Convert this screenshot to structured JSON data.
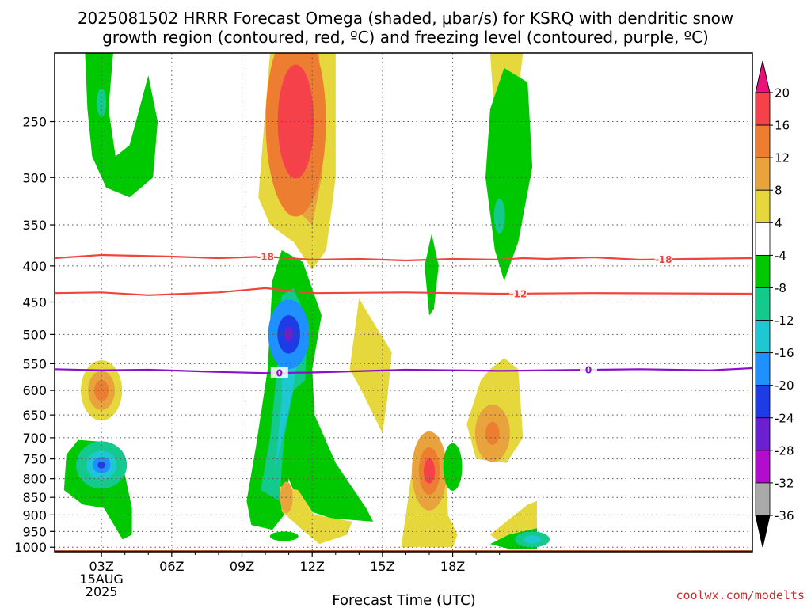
{
  "header": {
    "title_line1": "2025081502 HRRR Forecast Omega (shaded, μbar/s) for KSRQ with dendritic snow",
    "title_line2": "growth region (contoured, red, ºC) and freezing level (contoured, purple, ºC)"
  },
  "footer": {
    "credit": "coolwx.com/modelts"
  },
  "chart_data": {
    "type": "contour-time-height",
    "title": "2025081502 HRRR Forecast Omega (shaded, μbar/s) for KSRQ with dendritic snow growth region (contoured, red, ºC) and freezing level (contoured, purple, ºC)",
    "xlabel": "Forecast Time (UTC)",
    "ylabel": "",
    "x_axis": {
      "range_hours": [
        1,
        30.8
      ],
      "ticks": [
        {
          "hour": 3,
          "label": "03Z",
          "sub1": "15AUG",
          "sub2": "2025"
        },
        {
          "hour": 6,
          "label": "06Z",
          "sub1": "",
          "sub2": ""
        },
        {
          "hour": 9,
          "label": "09Z",
          "sub1": "",
          "sub2": ""
        },
        {
          "hour": 12,
          "label": "12Z",
          "sub1": "",
          "sub2": ""
        },
        {
          "hour": 15,
          "label": "15Z",
          "sub1": "",
          "sub2": ""
        },
        {
          "hour": 18,
          "label": "18Z",
          "sub1": "",
          "sub2": ""
        }
      ],
      "minor_grid_hours": [
        2,
        4,
        5,
        7,
        8,
        10,
        11,
        13,
        14,
        16,
        17,
        19,
        20
      ]
    },
    "y_axis": {
      "scale": "log-pressure",
      "unit": "hPa",
      "range": [
        1015,
        200
      ],
      "ticks": [
        "250",
        "300",
        "350",
        "400",
        "450",
        "500",
        "550",
        "600",
        "650",
        "700",
        "750",
        "800",
        "850",
        "900",
        "950",
        "1000"
      ]
    },
    "ground_layer_hpa": 1010,
    "ground_color": "#a0522d",
    "colorbar": {
      "unit": "μbar/s",
      "labels": [
        "20",
        "16",
        "12",
        "8",
        "4",
        "-4",
        "-8",
        "-12",
        "-16",
        "-20",
        "-24",
        "-28",
        "-32",
        "-36"
      ],
      "bins": [
        {
          "range": ">20",
          "color": "#e8127a"
        },
        {
          "range": "16 to 20",
          "color": "#f5424a"
        },
        {
          "range": "12 to 16",
          "color": "#ed7d31"
        },
        {
          "range": "8 to 12",
          "color": "#e8a33d"
        },
        {
          "range": "4 to 8",
          "color": "#e6d73c"
        },
        {
          "range": "-4 to 4",
          "color": "#ffffff"
        },
        {
          "range": "-8 to -4",
          "color": "#00c800"
        },
        {
          "range": "-12 to -8",
          "color": "#14c98c"
        },
        {
          "range": "-16 to -12",
          "color": "#1ec8d2"
        },
        {
          "range": "-20 to -16",
          "color": "#1e90ff"
        },
        {
          "range": "-24 to -20",
          "color": "#1e3ce6"
        },
        {
          "range": "-28 to -24",
          "color": "#6a1fd0"
        },
        {
          "range": "-32 to -28",
          "color": "#b20ccc"
        },
        {
          "range": "-36 to -32",
          "color": "#a9a9a9"
        },
        {
          "range": "<-36",
          "color": "#000000"
        }
      ]
    },
    "contours": [
      {
        "name": "-18",
        "label": "-18",
        "color": "#f0443c",
        "points": [
          [
            1,
            390
          ],
          [
            3,
            386
          ],
          [
            6,
            388
          ],
          [
            8,
            390
          ],
          [
            10,
            388
          ],
          [
            12,
            392
          ],
          [
            14,
            391
          ],
          [
            16,
            393
          ],
          [
            18,
            391
          ],
          [
            20,
            392
          ],
          [
            21,
            390
          ],
          [
            22,
            391
          ],
          [
            24,
            389
          ],
          [
            26,
            392
          ],
          [
            28,
            391
          ],
          [
            30.8,
            390
          ]
        ],
        "label_hours": [
          10,
          27
        ]
      },
      {
        "name": "-12",
        "label": "-12",
        "color": "#f0443c",
        "points": [
          [
            1,
            437
          ],
          [
            3,
            436
          ],
          [
            5,
            440
          ],
          [
            8,
            436
          ],
          [
            10,
            430
          ],
          [
            12,
            437
          ],
          [
            16,
            436
          ],
          [
            20,
            438
          ],
          [
            24,
            437
          ],
          [
            30.8,
            438
          ]
        ],
        "label_hours": [
          20.8
        ]
      },
      {
        "name": "freezing level 0",
        "label": "0",
        "color": "#8a10c8",
        "points": [
          [
            1,
            560
          ],
          [
            3,
            562
          ],
          [
            5,
            561
          ],
          [
            8,
            565
          ],
          [
            10,
            567
          ],
          [
            12,
            566
          ],
          [
            16,
            561
          ],
          [
            20,
            563
          ],
          [
            24,
            561
          ],
          [
            26,
            560
          ],
          [
            29,
            562
          ],
          [
            30.8,
            558
          ]
        ],
        "label_hours": [
          10.6,
          23.8
        ]
      }
    ]
  }
}
